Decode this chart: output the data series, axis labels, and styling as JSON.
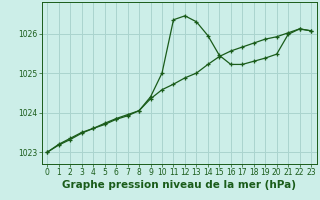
{
  "title": "Graphe pression niveau de la mer (hPa)",
  "background_color": "#cceee8",
  "grid_color": "#aad4ce",
  "line_color": "#1a5c1a",
  "marker_color": "#1a5c1a",
  "x_hours": [
    0,
    1,
    2,
    3,
    4,
    5,
    6,
    7,
    8,
    9,
    10,
    11,
    12,
    13,
    14,
    15,
    16,
    17,
    18,
    19,
    20,
    21,
    22,
    23
  ],
  "series1": [
    1023.0,
    1023.2,
    1023.35,
    1023.5,
    1023.6,
    1023.7,
    1023.83,
    1023.92,
    1024.05,
    1024.4,
    1025.0,
    1026.35,
    1026.45,
    1026.3,
    1025.95,
    1025.45,
    1025.22,
    1025.22,
    1025.3,
    1025.38,
    1025.48,
    1025.98,
    1026.12,
    1026.07
  ],
  "series2": [
    1023.0,
    1023.18,
    1023.32,
    1023.48,
    1023.6,
    1023.73,
    1023.85,
    1023.95,
    1024.05,
    1024.35,
    1024.58,
    1024.72,
    1024.88,
    1025.0,
    1025.22,
    1025.42,
    1025.56,
    1025.66,
    1025.76,
    1025.86,
    1025.92,
    1026.02,
    1026.12,
    1026.07
  ],
  "ylim": [
    1022.7,
    1026.8
  ],
  "yticks": [
    1023,
    1024,
    1025,
    1026
  ],
  "xlim": [
    -0.5,
    23.5
  ],
  "xticks": [
    0,
    1,
    2,
    3,
    4,
    5,
    6,
    7,
    8,
    9,
    10,
    11,
    12,
    13,
    14,
    15,
    16,
    17,
    18,
    19,
    20,
    21,
    22,
    23
  ],
  "title_fontsize": 7.5,
  "tick_fontsize": 5.5
}
